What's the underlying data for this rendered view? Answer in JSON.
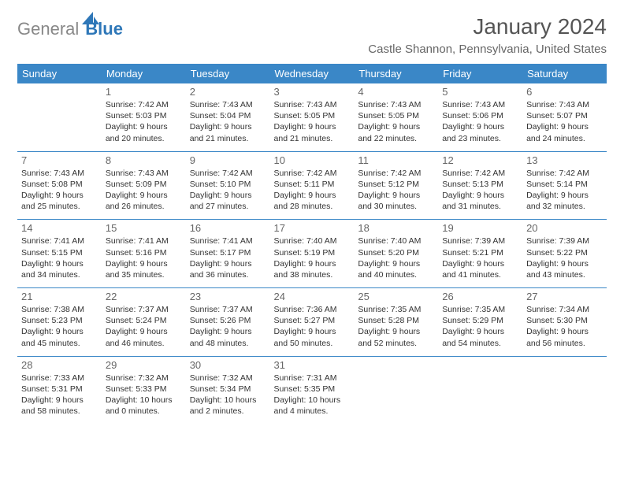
{
  "brand": {
    "part1": "General",
    "part2": "Blue"
  },
  "title": "January 2024",
  "location": "Castle Shannon, Pennsylvania, United States",
  "colors": {
    "header_bg": "#3a87c7",
    "header_text": "#ffffff",
    "cell_border": "#3a87c7",
    "logo_gray": "#888888",
    "logo_blue": "#2e77b8",
    "title_color": "#555555",
    "location_color": "#666666"
  },
  "day_headers": [
    "Sunday",
    "Monday",
    "Tuesday",
    "Wednesday",
    "Thursday",
    "Friday",
    "Saturday"
  ],
  "weeks": [
    [
      {},
      {
        "n": "1",
        "sr": "7:42 AM",
        "ss": "5:03 PM",
        "dl": "9 hours and 20 minutes."
      },
      {
        "n": "2",
        "sr": "7:43 AM",
        "ss": "5:04 PM",
        "dl": "9 hours and 21 minutes."
      },
      {
        "n": "3",
        "sr": "7:43 AM",
        "ss": "5:05 PM",
        "dl": "9 hours and 21 minutes."
      },
      {
        "n": "4",
        "sr": "7:43 AM",
        "ss": "5:05 PM",
        "dl": "9 hours and 22 minutes."
      },
      {
        "n": "5",
        "sr": "7:43 AM",
        "ss": "5:06 PM",
        "dl": "9 hours and 23 minutes."
      },
      {
        "n": "6",
        "sr": "7:43 AM",
        "ss": "5:07 PM",
        "dl": "9 hours and 24 minutes."
      }
    ],
    [
      {
        "n": "7",
        "sr": "7:43 AM",
        "ss": "5:08 PM",
        "dl": "9 hours and 25 minutes."
      },
      {
        "n": "8",
        "sr": "7:43 AM",
        "ss": "5:09 PM",
        "dl": "9 hours and 26 minutes."
      },
      {
        "n": "9",
        "sr": "7:42 AM",
        "ss": "5:10 PM",
        "dl": "9 hours and 27 minutes."
      },
      {
        "n": "10",
        "sr": "7:42 AM",
        "ss": "5:11 PM",
        "dl": "9 hours and 28 minutes."
      },
      {
        "n": "11",
        "sr": "7:42 AM",
        "ss": "5:12 PM",
        "dl": "9 hours and 30 minutes."
      },
      {
        "n": "12",
        "sr": "7:42 AM",
        "ss": "5:13 PM",
        "dl": "9 hours and 31 minutes."
      },
      {
        "n": "13",
        "sr": "7:42 AM",
        "ss": "5:14 PM",
        "dl": "9 hours and 32 minutes."
      }
    ],
    [
      {
        "n": "14",
        "sr": "7:41 AM",
        "ss": "5:15 PM",
        "dl": "9 hours and 34 minutes."
      },
      {
        "n": "15",
        "sr": "7:41 AM",
        "ss": "5:16 PM",
        "dl": "9 hours and 35 minutes."
      },
      {
        "n": "16",
        "sr": "7:41 AM",
        "ss": "5:17 PM",
        "dl": "9 hours and 36 minutes."
      },
      {
        "n": "17",
        "sr": "7:40 AM",
        "ss": "5:19 PM",
        "dl": "9 hours and 38 minutes."
      },
      {
        "n": "18",
        "sr": "7:40 AM",
        "ss": "5:20 PM",
        "dl": "9 hours and 40 minutes."
      },
      {
        "n": "19",
        "sr": "7:39 AM",
        "ss": "5:21 PM",
        "dl": "9 hours and 41 minutes."
      },
      {
        "n": "20",
        "sr": "7:39 AM",
        "ss": "5:22 PM",
        "dl": "9 hours and 43 minutes."
      }
    ],
    [
      {
        "n": "21",
        "sr": "7:38 AM",
        "ss": "5:23 PM",
        "dl": "9 hours and 45 minutes."
      },
      {
        "n": "22",
        "sr": "7:37 AM",
        "ss": "5:24 PM",
        "dl": "9 hours and 46 minutes."
      },
      {
        "n": "23",
        "sr": "7:37 AM",
        "ss": "5:26 PM",
        "dl": "9 hours and 48 minutes."
      },
      {
        "n": "24",
        "sr": "7:36 AM",
        "ss": "5:27 PM",
        "dl": "9 hours and 50 minutes."
      },
      {
        "n": "25",
        "sr": "7:35 AM",
        "ss": "5:28 PM",
        "dl": "9 hours and 52 minutes."
      },
      {
        "n": "26",
        "sr": "7:35 AM",
        "ss": "5:29 PM",
        "dl": "9 hours and 54 minutes."
      },
      {
        "n": "27",
        "sr": "7:34 AM",
        "ss": "5:30 PM",
        "dl": "9 hours and 56 minutes."
      }
    ],
    [
      {
        "n": "28",
        "sr": "7:33 AM",
        "ss": "5:31 PM",
        "dl": "9 hours and 58 minutes."
      },
      {
        "n": "29",
        "sr": "7:32 AM",
        "ss": "5:33 PM",
        "dl": "10 hours and 0 minutes."
      },
      {
        "n": "30",
        "sr": "7:32 AM",
        "ss": "5:34 PM",
        "dl": "10 hours and 2 minutes."
      },
      {
        "n": "31",
        "sr": "7:31 AM",
        "ss": "5:35 PM",
        "dl": "10 hours and 4 minutes."
      },
      {},
      {},
      {}
    ]
  ]
}
